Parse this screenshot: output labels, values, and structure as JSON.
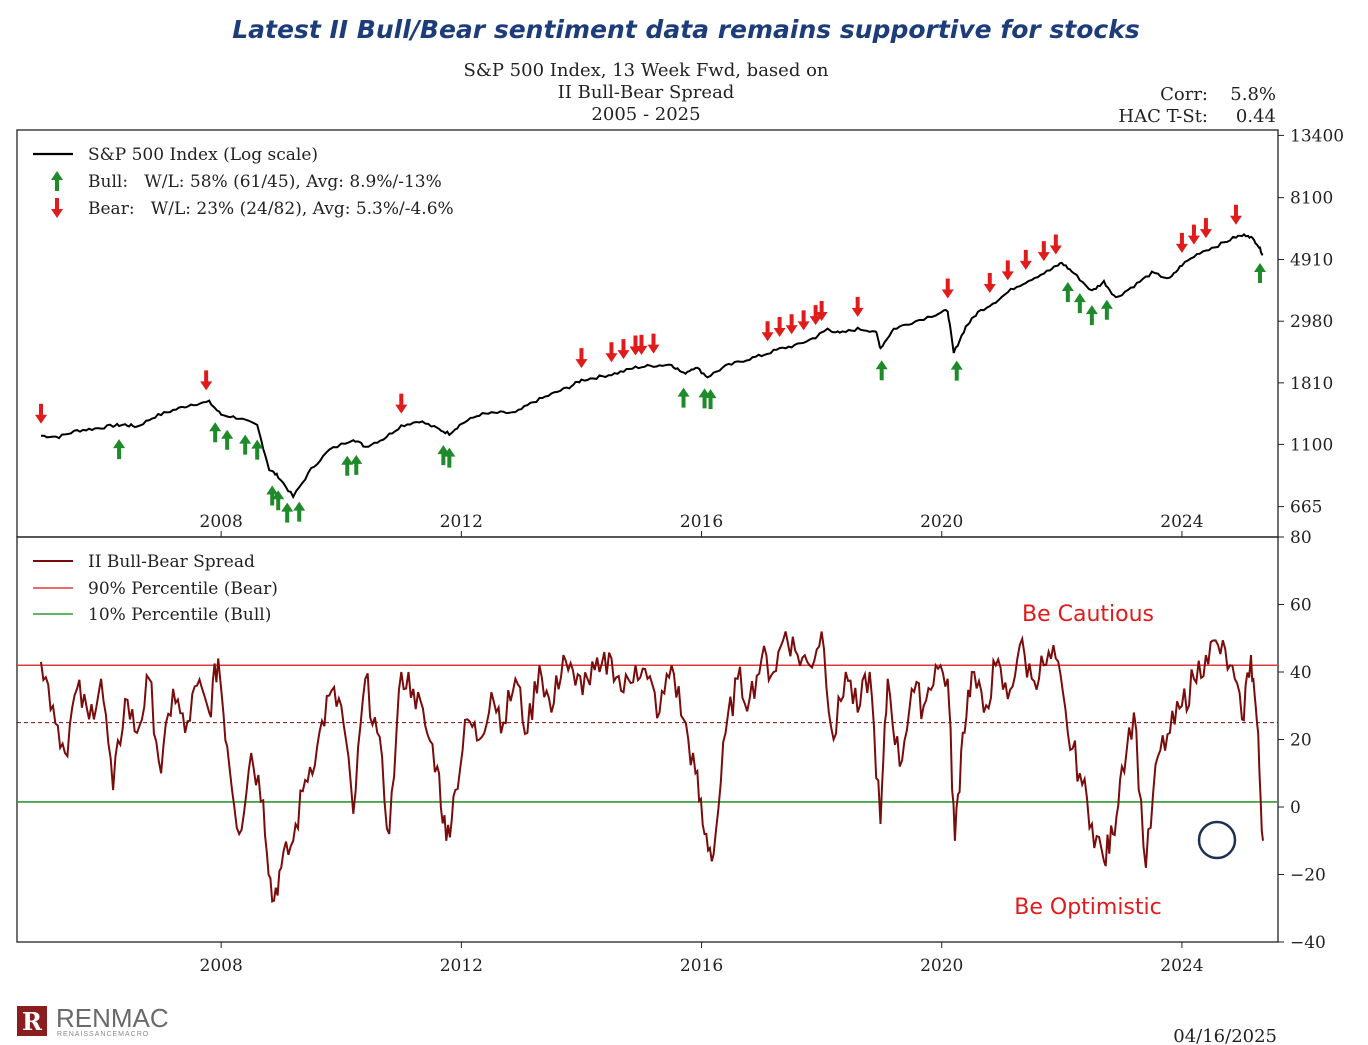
{
  "headline": "Latest II Bull/Bear sentiment data remains supportive for stocks",
  "subtitle": [
    "S&P 500 Index, 13 Week Fwd, based on",
    "II Bull-Bear Spread",
    "2005 - 2025"
  ],
  "stats": {
    "corr_label": "Corr:",
    "corr_value": "5.8%",
    "tst_label": "HAC T-St:",
    "tst_value": "0.44"
  },
  "date": "04/16/2025",
  "logo": {
    "name": "RENMAC",
    "sub": "RENAISSANCEMACRO"
  },
  "colors": {
    "index": "#000000",
    "spread": "#7a0c0c",
    "bear_line": "#e03b3b",
    "bull_line": "#2e9a2e",
    "bull_arrow": "#1f8a2a",
    "bear_arrow": "#e01b1b",
    "circle": "#1d3050",
    "annotation": "#e01b1b"
  },
  "chart_data": [
    {
      "type": "line",
      "panel": "top",
      "yscale": "log",
      "ylim": [
        520,
        14000
      ],
      "xlim": [
        2004.6,
        2025.6
      ],
      "yticks": [
        665,
        1100,
        1810,
        2980,
        4910,
        8100,
        13400
      ],
      "xticks": [
        "2008",
        "2012",
        "2016",
        "2020",
        "2024"
      ],
      "legend": [
        "S&P 500 Index (Log scale)",
        "Bull:   W/L: 58% (61/45), Avg: 8.9%/-13%",
        "Bear:   W/L: 23% (24/82), Avg: 5.3%/-4.6%"
      ],
      "series": [
        {
          "x": [
            2005.0,
            2005.3,
            2005.6,
            2005.9,
            2006.2,
            2006.4,
            2006.6,
            2006.9,
            2007.2,
            2007.5,
            2007.8,
            2008.0,
            2008.3,
            2008.6,
            2008.8,
            2008.95,
            2009.2,
            2009.5,
            2009.8,
            2010.2,
            2010.4,
            2010.7,
            2011.0,
            2011.3,
            2011.6,
            2011.8,
            2012.0,
            2012.3,
            2012.6,
            2012.9,
            2013.2,
            2013.5,
            2013.8,
            2014.0,
            2014.3,
            2014.6,
            2014.9,
            2015.2,
            2015.5,
            2015.7,
            2015.9,
            2016.1,
            2016.4,
            2016.7,
            2017.0,
            2017.3,
            2017.6,
            2017.9,
            2018.1,
            2018.3,
            2018.6,
            2018.9,
            2018.98,
            2019.2,
            2019.5,
            2019.9,
            2020.1,
            2020.2,
            2020.4,
            2020.6,
            2020.9,
            2021.2,
            2021.5,
            2021.8,
            2022.0,
            2022.2,
            2022.5,
            2022.7,
            2022.9,
            2023.2,
            2023.5,
            2023.8,
            2024.0,
            2024.3,
            2024.6,
            2024.9,
            2025.1,
            2025.25,
            2025.35
          ],
          "y": [
            1180,
            1170,
            1230,
            1250,
            1280,
            1290,
            1270,
            1380,
            1450,
            1520,
            1550,
            1400,
            1360,
            1280,
            900,
            850,
            720,
            900,
            1050,
            1150,
            1080,
            1150,
            1280,
            1330,
            1250,
            1200,
            1300,
            1400,
            1420,
            1420,
            1550,
            1650,
            1750,
            1850,
            1900,
            1960,
            2050,
            2080,
            2100,
            1950,
            2060,
            1900,
            2070,
            2170,
            2260,
            2380,
            2460,
            2620,
            2800,
            2700,
            2800,
            2750,
            2400,
            2800,
            2950,
            3150,
            3250,
            2300,
            2850,
            3200,
            3500,
            3900,
            4200,
            4500,
            4780,
            4400,
            3800,
            4100,
            3600,
            3970,
            4400,
            4200,
            4700,
            5200,
            5500,
            5900,
            6000,
            5600,
            5100
          ]
        }
      ]
    },
    {
      "type": "line",
      "panel": "bottom",
      "ylim": [
        -40,
        80
      ],
      "xlim": [
        2004.6,
        2025.6
      ],
      "yticks": [
        80,
        60,
        40,
        20,
        0,
        -20,
        -40
      ],
      "xticks": [
        "2008",
        "2012",
        "2016",
        "2020",
        "2024"
      ],
      "legend": [
        "II Bull-Bear Spread",
        "90% Percentile (Bear)",
        "10% Percentile (Bull)"
      ],
      "bear_threshold": 42,
      "bull_threshold": 1.5,
      "mid_line": 25,
      "annotations": [
        "Be Cautious",
        "Be Optimistic"
      ],
      "series": [
        {
          "x": [
            2005.0,
            2005.2,
            2005.4,
            2005.6,
            2005.8,
            2006.0,
            2006.2,
            2006.4,
            2006.6,
            2006.8,
            2007.0,
            2007.2,
            2007.4,
            2007.6,
            2007.8,
            2007.95,
            2008.1,
            2008.3,
            2008.5,
            2008.7,
            2008.85,
            2009.0,
            2009.2,
            2009.4,
            2009.6,
            2009.8,
            2010.0,
            2010.2,
            2010.4,
            2010.6,
            2010.8,
            2011.0,
            2011.2,
            2011.4,
            2011.6,
            2011.75,
            2011.9,
            2012.1,
            2012.3,
            2012.5,
            2012.7,
            2012.9,
            2013.1,
            2013.3,
            2013.5,
            2013.7,
            2013.9,
            2014.1,
            2014.3,
            2014.5,
            2014.7,
            2014.9,
            2015.1,
            2015.3,
            2015.5,
            2015.7,
            2015.9,
            2016.05,
            2016.2,
            2016.4,
            2016.6,
            2016.8,
            2017.0,
            2017.2,
            2017.4,
            2017.6,
            2017.8,
            2018.0,
            2018.2,
            2018.4,
            2018.6,
            2018.8,
            2018.98,
            2019.1,
            2019.3,
            2019.5,
            2019.7,
            2019.9,
            2020.1,
            2020.22,
            2020.35,
            2020.5,
            2020.7,
            2020.9,
            2021.1,
            2021.3,
            2021.5,
            2021.7,
            2021.9,
            2022.1,
            2022.3,
            2022.5,
            2022.7,
            2022.85,
            2023.0,
            2023.2,
            2023.4,
            2023.6,
            2023.8,
            2024.0,
            2024.2,
            2024.4,
            2024.6,
            2024.8,
            2025.0,
            2025.15,
            2025.25,
            2025.35
          ],
          "y": [
            43,
            30,
            16,
            35,
            26,
            38,
            5,
            32,
            22,
            38,
            10,
            35,
            22,
            36,
            28,
            44,
            18,
            -8,
            16,
            2,
            -28,
            -18,
            -10,
            8,
            18,
            33,
            30,
            -2,
            38,
            22,
            -8,
            40,
            35,
            24,
            12,
            -10,
            5,
            26,
            20,
            34,
            25,
            38,
            22,
            42,
            28,
            45,
            36,
            38,
            40,
            44,
            34,
            42,
            38,
            28,
            42,
            26,
            10,
            -8,
            -14,
            22,
            38,
            32,
            44,
            40,
            52,
            45,
            42,
            52,
            20,
            40,
            28,
            40,
            -5,
            38,
            12,
            35,
            30,
            42,
            38,
            -10,
            22,
            40,
            28,
            42,
            32,
            48,
            38,
            42,
            44,
            22,
            10,
            -5,
            -16,
            -8,
            12,
            28,
            -18,
            15,
            22,
            30,
            38,
            45,
            48,
            42,
            26,
            45,
            25,
            -10
          ]
        }
      ]
    }
  ]
}
